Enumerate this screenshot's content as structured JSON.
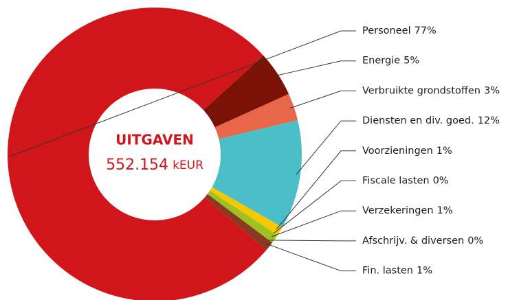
{
  "chart_data": {
    "type": "donut",
    "center_title": "UITGAVEN",
    "center_value": "552.154",
    "center_unit": "kEUR",
    "categories": [
      "Personeel",
      "Energie",
      "Verbruikte grondstoffen",
      "Diensten en div. goed.",
      "Voorzieningen",
      "Fiscale lasten",
      "Verzekeringen",
      "Afschrijv. & diversen",
      "Fin. lasten"
    ],
    "values": [
      77,
      5,
      3,
      12,
      1,
      0,
      1,
      0,
      1
    ],
    "value_labels": [
      "77%",
      "5%",
      "3%",
      "12%",
      "1%",
      "0%",
      "1%",
      "0%",
      "1%"
    ],
    "colors": [
      "#d0161b",
      "#7a1205",
      "#e8664a",
      "#4bbfc8",
      "#f7c800",
      "#e8a000",
      "#9dc221",
      "#5a8a2a",
      "#8a3a22"
    ]
  }
}
